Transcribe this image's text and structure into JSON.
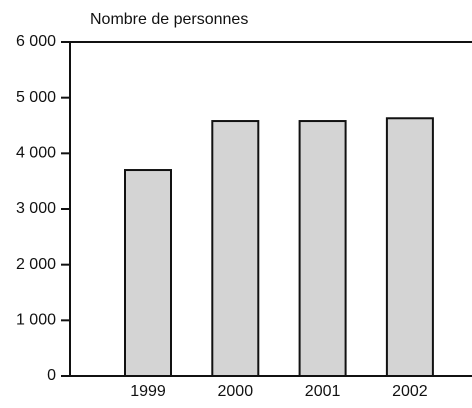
{
  "chart_data": {
    "type": "bar",
    "y_label": "Nombre de personnes",
    "categories": [
      "1999",
      "2000",
      "2001",
      "2002"
    ],
    "values": [
      3700,
      4580,
      4580,
      4630
    ],
    "color": "#d4d4d4",
    "ylim": [
      0,
      6000
    ],
    "yticks": [
      0,
      {
        "value": 1000,
        "label": "1 000"
      },
      {
        "value": 2000,
        "label": "2 000"
      },
      {
        "value": 3000,
        "label": "3 000"
      },
      {
        "value": 4000,
        "label": "4 000"
      },
      {
        "value": 5000,
        "label": "5 000"
      },
      {
        "value": 6000,
        "label": "6 000"
      }
    ]
  }
}
